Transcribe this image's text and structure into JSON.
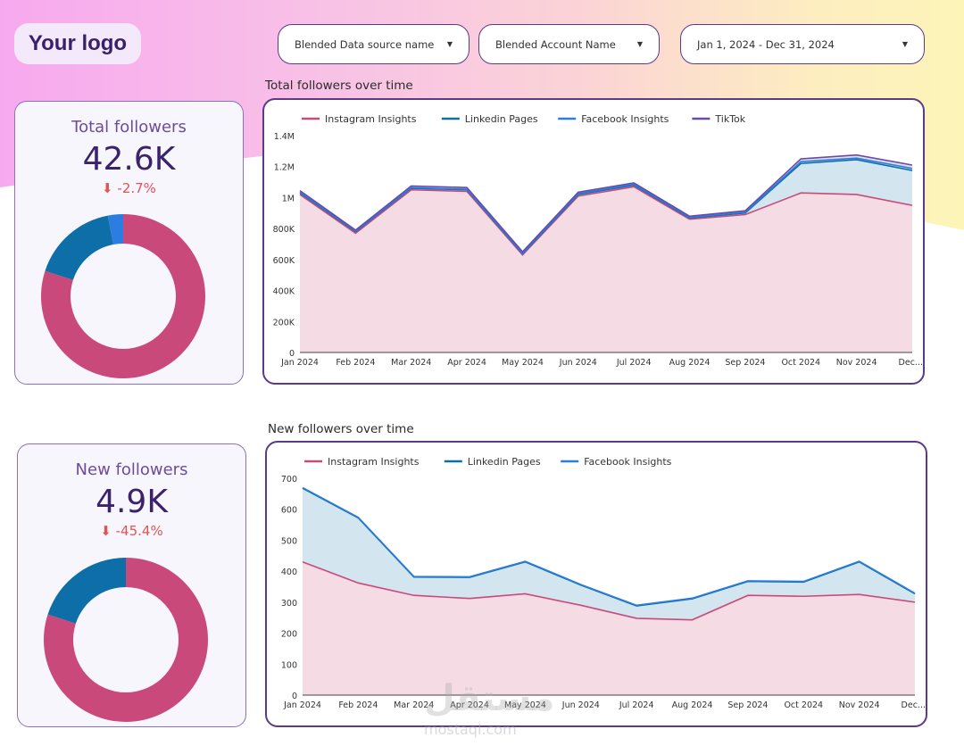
{
  "header": {
    "logo_text": "Your logo",
    "filters": [
      {
        "label": "Blended Data source name"
      },
      {
        "label": "Blended Account Name"
      },
      {
        "label": "Jan 1, 2024 - Dec 31, 2024"
      }
    ]
  },
  "kpis": {
    "total": {
      "label": "Total followers",
      "value": "42.6K",
      "delta": "-2.7%",
      "donut": [
        {
          "name": "Instagram Insights",
          "value": 80,
          "color": "#c94a7a"
        },
        {
          "name": "Linkedin Pages",
          "value": 17,
          "color": "#0e6ea8"
        },
        {
          "name": "Facebook Insights",
          "value": 3,
          "color": "#2b7de0"
        }
      ]
    },
    "new": {
      "label": "New followers",
      "value": "4.9K",
      "delta": "-45.4%",
      "donut": [
        {
          "name": "Instagram Insights",
          "value": 80,
          "color": "#c94a7a"
        },
        {
          "name": "Linkedin Pages",
          "value": 20,
          "color": "#0e6ea8"
        }
      ]
    }
  },
  "chart_data": [
    {
      "type": "area",
      "title": "Total followers over time",
      "categories": [
        "Jan 2024",
        "Feb 2024",
        "Mar 2024",
        "Apr 2024",
        "May 2024",
        "Jun 2024",
        "Jul 2024",
        "Aug 2024",
        "Sep 2024",
        "Oct 2024",
        "Nov 2024",
        "Dec..."
      ],
      "ylim": [
        0,
        1400000
      ],
      "yticks": [
        "0",
        "200K",
        "400K",
        "600K",
        "800K",
        "1M",
        "1.2M",
        "1.4M"
      ],
      "ytick_values": [
        0,
        200000,
        400000,
        600000,
        800000,
        1000000,
        1200000,
        1400000
      ],
      "legend_position": "top-left",
      "series": [
        {
          "name": "Instagram Insights",
          "color": "#c94a7a",
          "fill": "#f4dbe4",
          "values": [
            1020000,
            770000,
            1050000,
            1040000,
            630000,
            1010000,
            1070000,
            860000,
            890000,
            1030000,
            1020000,
            950000
          ]
        },
        {
          "name": "Linkedin Pages",
          "color": "#0e6ea8",
          "fill": "#d3e6ef",
          "values": [
            1030000,
            780000,
            1060000,
            1050000,
            636000,
            1020000,
            1080000,
            868000,
            900000,
            1220000,
            1245000,
            1175000
          ]
        },
        {
          "name": "Facebook Insights",
          "color": "#2b7de0",
          "fill": "#d6e4f5",
          "values": [
            1035000,
            784000,
            1064000,
            1054000,
            640000,
            1026000,
            1086000,
            872000,
            906000,
            1232000,
            1255000,
            1188000
          ]
        },
        {
          "name": "TikTok",
          "color": "#6a4aa8",
          "fill": "#e3dcf0",
          "values": [
            1045000,
            790000,
            1075000,
            1065000,
            650000,
            1035000,
            1095000,
            880000,
            915000,
            1250000,
            1275000,
            1210000
          ]
        }
      ]
    },
    {
      "type": "area",
      "title": "New followers over time",
      "categories": [
        "Jan 2024",
        "Feb 2024",
        "Mar 2024",
        "Apr 2024",
        "May 2024",
        "Jun 2024",
        "Jul 2024",
        "Aug 2024",
        "Sep 2024",
        "Oct 2024",
        "Nov 2024",
        "Dec..."
      ],
      "ylim": [
        0,
        700
      ],
      "yticks": [
        "0",
        "100",
        "200",
        "300",
        "400",
        "500",
        "600",
        "700"
      ],
      "ytick_values": [
        0,
        100,
        200,
        300,
        400,
        500,
        600,
        700
      ],
      "legend_position": "top-left",
      "series": [
        {
          "name": "Instagram Insights",
          "color": "#c94a7a",
          "fill": "#f4dbe4",
          "values": [
            430,
            362,
            322,
            312,
            327,
            290,
            248,
            243,
            322,
            319,
            325,
            300
          ]
        },
        {
          "name": "Linkedin Pages",
          "color": "#0e6ea8",
          "fill": "#d3e6ef",
          "values": [
            668,
            572,
            381,
            380,
            430,
            355,
            288,
            311,
            367,
            365,
            430,
            327
          ]
        },
        {
          "name": "Facebook Insights",
          "color": "#2b7de0",
          "fill": "#d6e4f5",
          "values": [
            670,
            574,
            383,
            382,
            432,
            357,
            290,
            313,
            369,
            367,
            432,
            329
          ]
        }
      ]
    }
  ],
  "watermark": {
    "arabic": "مستقل",
    "latin": "mostaql.com"
  }
}
